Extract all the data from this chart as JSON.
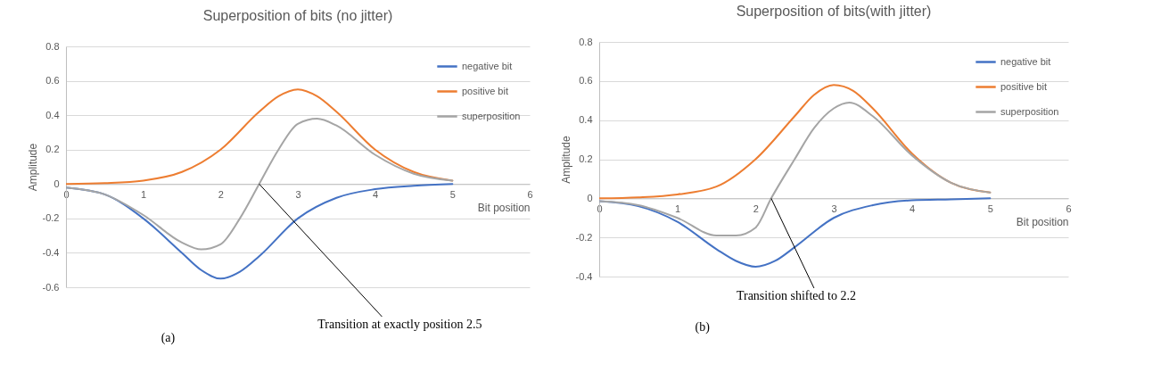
{
  "chart_data": [
    {
      "type": "line",
      "title": "Superposition of bits (no jitter)",
      "xlabel": "Bit position",
      "ylabel": "Amplitude",
      "xlim": [
        0,
        6
      ],
      "xticks": [
        0,
        1,
        2,
        3,
        4,
        5,
        6
      ],
      "ylim": [
        -0.6,
        0.8
      ],
      "yticks": [
        -0.6,
        -0.4,
        -0.2,
        0,
        0.2,
        0.4,
        0.6,
        0.8
      ],
      "grid": "y",
      "legend": "top right",
      "marker": "none",
      "line_style": "solid",
      "annotations": [
        "(a)",
        {
          "text": "Transition at exactly position 2.5",
          "x": 2.5,
          "y": 0
        }
      ],
      "series": [
        {
          "name": "negative bit",
          "color": "#4472c4",
          "x": [
            0,
            0.5,
            1,
            1.5,
            1.75,
            2,
            2.25,
            2.5,
            3,
            3.5,
            4,
            4.5,
            5
          ],
          "values": [
            -0.02,
            -0.06,
            -0.2,
            -0.4,
            -0.5,
            -0.55,
            -0.51,
            -0.42,
            -0.2,
            -0.08,
            -0.03,
            -0.01,
            0
          ]
        },
        {
          "name": "positive bit",
          "color": "#ed7d31",
          "x": [
            0,
            0.5,
            1,
            1.5,
            2,
            2.5,
            2.75,
            3,
            3.25,
            3.5,
            4,
            4.5,
            5
          ],
          "values": [
            0,
            0.005,
            0.02,
            0.07,
            0.2,
            0.42,
            0.51,
            0.55,
            0.51,
            0.42,
            0.2,
            0.07,
            0.02
          ]
        },
        {
          "name": "superposition",
          "color": "#a5a5a5",
          "x": [
            0,
            0.5,
            1,
            1.5,
            1.75,
            2,
            2.25,
            2.5,
            2.75,
            3,
            3.25,
            3.5,
            4,
            4.5,
            5
          ],
          "values": [
            -0.02,
            -0.06,
            -0.18,
            -0.34,
            -0.38,
            -0.35,
            -0.2,
            0,
            0.2,
            0.35,
            0.38,
            0.34,
            0.17,
            0.06,
            0.02
          ]
        }
      ]
    },
    {
      "type": "line",
      "title": "Superposition of bits(with jitter)",
      "xlabel": "Bit position",
      "ylabel": "Amplitude",
      "xlim": [
        0,
        6
      ],
      "xticks": [
        0,
        1,
        2,
        3,
        4,
        5,
        6
      ],
      "ylim": [
        -0.4,
        0.8
      ],
      "yticks": [
        -0.4,
        -0.2,
        0,
        0.2,
        0.4,
        0.6,
        0.8
      ],
      "grid": "y",
      "legend": "top right",
      "marker": "none",
      "line_style": "solid",
      "annotations": [
        "(b)",
        {
          "text": "Transition shifted to 2.2",
          "x": 2.2,
          "y": 0
        }
      ],
      "series": [
        {
          "name": "negative bit",
          "color": "#4472c4",
          "x": [
            0,
            0.5,
            1,
            1.5,
            1.75,
            2,
            2.25,
            2.5,
            3,
            3.5,
            4,
            4.5,
            5
          ],
          "values": [
            -0.015,
            -0.04,
            -0.12,
            -0.26,
            -0.32,
            -0.35,
            -0.32,
            -0.25,
            -0.1,
            -0.035,
            -0.01,
            -0.005,
            0
          ]
        },
        {
          "name": "positive bit",
          "color": "#ed7d31",
          "x": [
            0,
            0.5,
            1,
            1.5,
            2,
            2.5,
            2.75,
            3,
            3.25,
            3.5,
            4,
            4.5,
            5
          ],
          "values": [
            0,
            0.005,
            0.02,
            0.06,
            0.2,
            0.42,
            0.53,
            0.58,
            0.55,
            0.46,
            0.23,
            0.08,
            0.03
          ]
        },
        {
          "name": "superposition",
          "color": "#a5a5a5",
          "x": [
            0,
            0.5,
            1,
            1.5,
            1.75,
            2,
            2.2,
            2.5,
            2.75,
            3,
            3.2,
            3.5,
            4,
            4.5,
            5
          ],
          "values": [
            -0.015,
            -0.035,
            -0.1,
            -0.19,
            -0.19,
            -0.15,
            0,
            0.2,
            0.36,
            0.46,
            0.49,
            0.42,
            0.22,
            0.08,
            0.03
          ]
        }
      ]
    }
  ]
}
